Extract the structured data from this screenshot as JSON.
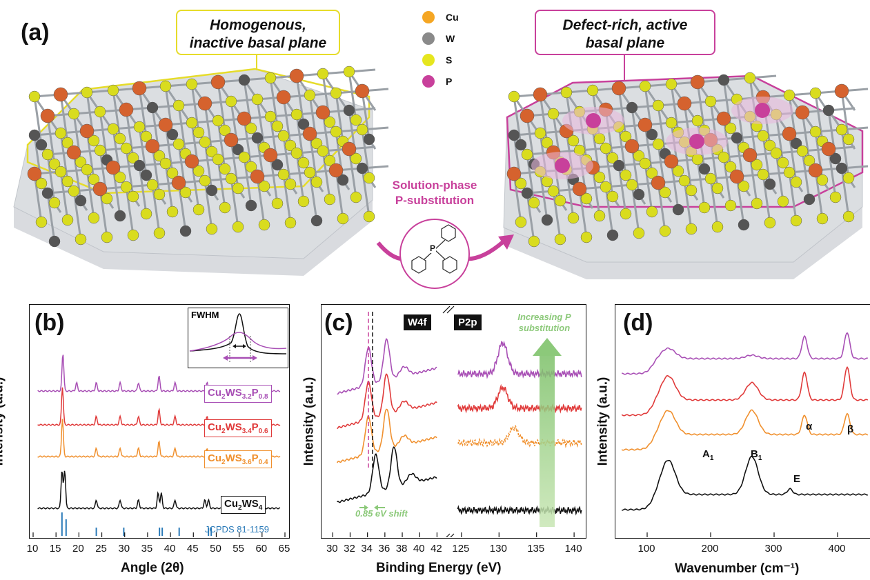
{
  "panel_a": {
    "letter": "(a)",
    "left_callout": [
      "Homogenous,",
      "inactive basal plane"
    ],
    "right_callout": [
      "Defect-rich, active",
      "basal plane"
    ],
    "process_label": [
      "Solution-phase",
      "P-substitution"
    ],
    "reagent_atom": "P",
    "legend": [
      {
        "label": "Cu",
        "color": "#f5a623"
      },
      {
        "label": "W",
        "color": "#8a8a8a"
      },
      {
        "label": "S",
        "color": "#e6e61e"
      },
      {
        "label": "P",
        "color": "#c8409b"
      }
    ],
    "colors": {
      "yellow_outline": "#e6dc2a",
      "magenta_outline": "#c8409b",
      "cu_sphere": "#d5622e",
      "w_sphere": "#555555",
      "s_sphere": "#d9dc1e"
    }
  },
  "panel_b": {
    "letter": "(b)",
    "xlabel": "Angle (2θ)",
    "ylabel": "Intensity (a.u.)",
    "xticks": [
      "10",
      "15",
      "20",
      "25",
      "30",
      "35",
      "40",
      "45",
      "50",
      "55",
      "60",
      "65"
    ],
    "inset_label": "FWHM",
    "reference": "JCPDS 81-1159",
    "samples": [
      {
        "formula_parts": [
          "Cu",
          "2",
          "WS",
          "3.2",
          "P",
          "0.8"
        ],
        "color": "#a84fb5"
      },
      {
        "formula_parts": [
          "Cu",
          "2",
          "WS",
          "3.4",
          "P",
          "0.6"
        ],
        "color": "#e03a3a"
      },
      {
        "formula_parts": [
          "Cu",
          "2",
          "WS",
          "3.6",
          "P",
          "0.4"
        ],
        "color": "#f0902e"
      },
      {
        "formula_parts": [
          "Cu",
          "2",
          "WS",
          "4",
          "",
          ""
        ],
        "color": "#111111"
      }
    ]
  },
  "panel_c": {
    "letter": "(c)",
    "xlabel": "Binding Energy (eV)",
    "ylabel": "Intensity (a.u.)",
    "xticks_left": [
      "30",
      "32",
      "34",
      "36",
      "38",
      "40",
      "42"
    ],
    "xticks_right": [
      "125",
      "130",
      "135",
      "140"
    ],
    "tag_w4f": "W4f",
    "tag_p2p": "P2p",
    "trend_note": [
      "Increasing P",
      "substitution"
    ],
    "shift_note": "0.85 eV shift"
  },
  "panel_d": {
    "letter": "(d)",
    "xlabel": "Wavenumber (cm⁻¹)",
    "ylabel": "Intensity (a.u.)",
    "xticks": [
      "100",
      "200",
      "300",
      "400"
    ],
    "peaks": [
      {
        "name": "A",
        "sub": "1"
      },
      {
        "name": "B",
        "sub": "1"
      },
      {
        "name": "E",
        "sub": ""
      },
      {
        "name": "α",
        "sub": ""
      },
      {
        "name": "β",
        "sub": ""
      }
    ]
  },
  "chart_data": [
    {
      "type": "line",
      "panel": "b",
      "xlabel": "Angle (2θ)",
      "ylabel": "Intensity (a.u.)",
      "xlim": [
        10,
        65
      ],
      "series": [
        {
          "name": "Cu2WS3.2P0.8",
          "peaks_2theta": [
            16.5,
            19.5,
            23.8,
            29.0,
            33.0,
            37.5,
            41.0,
            48.0
          ]
        },
        {
          "name": "Cu2WS3.4P0.6",
          "peaks_2theta": [
            16.4,
            23.8,
            29.0,
            33.0,
            37.5,
            41.0,
            48.0
          ]
        },
        {
          "name": "Cu2WS3.6P0.4",
          "peaks_2theta": [
            16.4,
            23.8,
            29.0,
            33.0,
            37.5,
            41.0,
            48.0
          ]
        },
        {
          "name": "Cu2WS4",
          "peaks_2theta": [
            16.3,
            16.9,
            23.8,
            29.0,
            33.0,
            37.3,
            38.0,
            41.0,
            47.5,
            48.3
          ]
        }
      ],
      "reference_lines_2theta": [
        16.3,
        17.2,
        23.8,
        29.8,
        37.6,
        38.2,
        41.9,
        48.3,
        48.9
      ]
    },
    {
      "type": "line",
      "panel": "c",
      "xlabel": "Binding Energy (eV)",
      "ylabel": "Intensity (a.u.)",
      "xlim": [
        29,
        43
      ],
      "xlim_break": [
        124,
        141
      ],
      "w4f_peaks_eV": [
        34.1,
        36.2
      ],
      "p2p_peak_eV": 130.5,
      "shift_eV": 0.85
    },
    {
      "type": "line",
      "panel": "d",
      "xlabel": "Wavenumber (cm⁻¹)",
      "ylabel": "Intensity (a.u.)",
      "xlim": [
        50,
        450
      ],
      "peaks_cm": {
        "A1": 133,
        "B1": 265,
        "E": 325,
        "alpha": 348,
        "beta": 415
      }
    }
  ]
}
